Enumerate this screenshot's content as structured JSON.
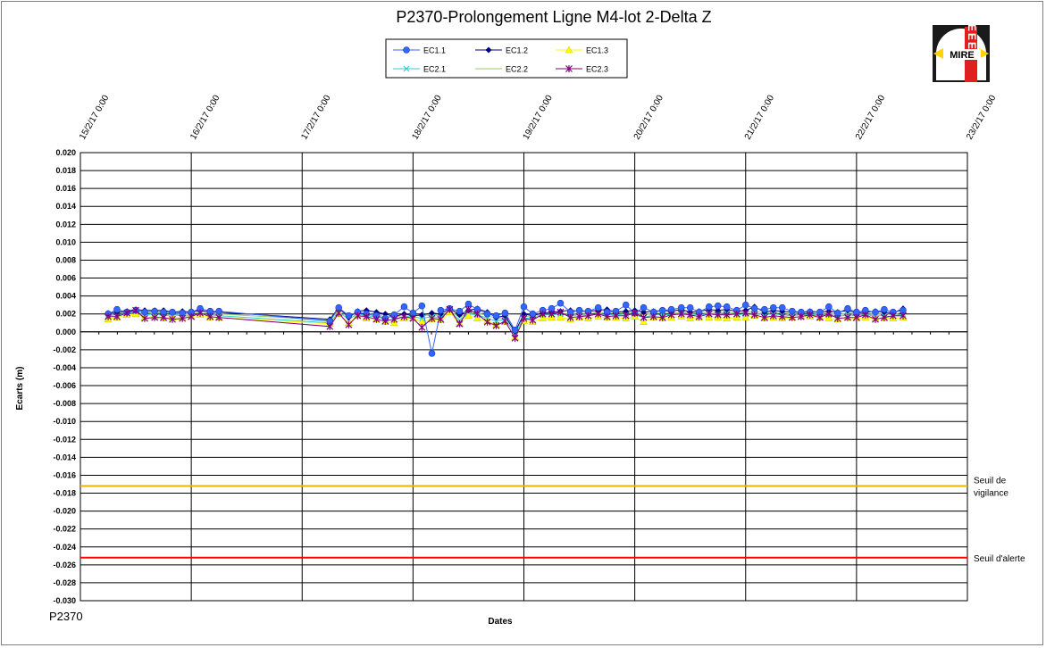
{
  "chart_data": {
    "type": "line",
    "title": "P2370-Prolongement  Ligne  M4-lot 2-Delta Z",
    "xlabel": "Dates",
    "ylabel": "Ecarts (m)",
    "footer_label": "P2370",
    "x_ticks": [
      "15/2/17 0:00",
      "16/2/17 0:00",
      "17/2/17 0:00",
      "18/2/17 0:00",
      "19/2/17 0:00",
      "20/2/17 0:00",
      "21/2/17 0:00",
      "22/2/17 0:00",
      "23/2/17 0:00"
    ],
    "xlim_days": [
      0,
      8
    ],
    "ylim": [
      -0.03,
      0.02
    ],
    "y_step": 0.002,
    "grid": true,
    "legend_position": "top-center",
    "thresholds": [
      {
        "label_lines": [
          "Seuil de",
          "vigilance"
        ],
        "value": -0.0172,
        "color": "#E8B400"
      },
      {
        "label_lines": [
          "Seuil d'alerte"
        ],
        "value": -0.0252,
        "color": "#FF0000"
      }
    ],
    "x": [
      0.25,
      0.33,
      0.42,
      0.5,
      0.58,
      0.67,
      0.75,
      0.83,
      0.92,
      1.0,
      1.08,
      1.17,
      1.25,
      2.25,
      2.33,
      2.42,
      2.5,
      2.58,
      2.67,
      2.75,
      2.83,
      2.92,
      3.0,
      3.08,
      3.17,
      3.25,
      3.33,
      3.42,
      3.5,
      3.58,
      3.67,
      3.75,
      3.83,
      3.92,
      4.0,
      4.08,
      4.17,
      4.25,
      4.33,
      4.42,
      4.5,
      4.58,
      4.67,
      4.75,
      4.83,
      4.92,
      5.0,
      5.08,
      5.17,
      5.25,
      5.33,
      5.42,
      5.5,
      5.58,
      5.67,
      5.75,
      5.83,
      5.92,
      6.0,
      6.08,
      6.17,
      6.25,
      6.33,
      6.42,
      6.5,
      6.58,
      6.67,
      6.75,
      6.83,
      6.92,
      7.0,
      7.08,
      7.17,
      7.25,
      7.33,
      7.42
    ],
    "series": [
      {
        "name": "EC1.1",
        "color": "#3366FF",
        "marker": "circle",
        "values": [
          0.002,
          0.0025,
          0.0022,
          0.0024,
          0.0022,
          0.0023,
          0.0022,
          0.0022,
          0.0021,
          0.0022,
          0.0026,
          0.0023,
          0.0023,
          0.0012,
          0.0027,
          0.0018,
          0.0022,
          0.002,
          0.0018,
          0.0015,
          0.0019,
          0.0028,
          0.0021,
          0.0029,
          -0.0024,
          0.0024,
          0.0026,
          0.0023,
          0.0031,
          0.0025,
          0.002,
          0.0018,
          0.0021,
          0.0002,
          0.0028,
          0.002,
          0.0024,
          0.0026,
          0.0032,
          0.0022,
          0.0024,
          0.0023,
          0.0027,
          0.0022,
          0.0023,
          0.003,
          0.0021,
          0.0027,
          0.0022,
          0.0024,
          0.0025,
          0.0027,
          0.0027,
          0.0022,
          0.0028,
          0.0029,
          0.0028,
          0.0024,
          0.003,
          0.0026,
          0.0025,
          0.0027,
          0.0027,
          0.0023,
          0.0022,
          0.0022,
          0.0022,
          0.0028,
          0.0021,
          0.0026,
          0.0022,
          0.0024,
          0.0022,
          0.0025,
          0.0022,
          0.0024
        ]
      },
      {
        "name": "EC1.2",
        "color": "#000080",
        "marker": "diamond",
        "values": [
          0.0021,
          0.0022,
          0.0023,
          0.0025,
          0.0024,
          0.0024,
          0.0024,
          0.0022,
          0.0023,
          0.0022,
          0.0024,
          0.0022,
          0.0022,
          0.0014,
          0.0027,
          0.0016,
          0.0023,
          0.0024,
          0.0022,
          0.002,
          0.0017,
          0.002,
          0.0018,
          0.0019,
          0.0021,
          0.002,
          0.0026,
          0.0019,
          0.0024,
          0.0026,
          0.0022,
          0.0016,
          0.0018,
          0.0,
          0.002,
          0.0018,
          0.0021,
          0.0022,
          0.0023,
          0.0024,
          0.0023,
          0.0023,
          0.0024,
          0.0025,
          0.0022,
          0.0023,
          0.0024,
          0.0022,
          0.0023,
          0.0024,
          0.0023,
          0.0025,
          0.0022,
          0.0023,
          0.0025,
          0.0024,
          0.0025,
          0.0023,
          0.0024,
          0.0028,
          0.0022,
          0.0024,
          0.0023,
          0.0022,
          0.0022,
          0.0023,
          0.0022,
          0.0023,
          0.0022,
          0.0024,
          0.0021,
          0.0022,
          0.0023,
          0.0022,
          0.0021,
          0.0026
        ]
      },
      {
        "name": "EC1.3",
        "color": "#FFFF00",
        "marker": "triangle",
        "values": [
          0.0014,
          0.0016,
          0.0019,
          0.002,
          0.0016,
          0.0017,
          0.0015,
          0.0016,
          0.0016,
          0.0017,
          0.0019,
          0.0016,
          0.0016,
          0.0009,
          0.002,
          0.001,
          0.0018,
          0.0015,
          0.0014,
          0.0011,
          0.001,
          0.0015,
          0.0015,
          0.0011,
          0.0014,
          0.0013,
          0.0022,
          0.0009,
          0.0018,
          0.0015,
          0.0012,
          0.0008,
          0.0011,
          -0.0006,
          0.0012,
          0.0011,
          0.0015,
          0.0016,
          0.0016,
          0.0014,
          0.0016,
          0.0015,
          0.0017,
          0.0016,
          0.0016,
          0.0015,
          0.0017,
          0.0011,
          0.0016,
          0.0015,
          0.0016,
          0.0017,
          0.0015,
          0.0016,
          0.0016,
          0.0016,
          0.0015,
          0.0016,
          0.0016,
          0.0018,
          0.0015,
          0.0016,
          0.0015,
          0.0016,
          0.0017,
          0.0017,
          0.0016,
          0.0015,
          0.0014,
          0.0016,
          0.0015,
          0.0016,
          0.0015,
          0.0015,
          0.0015,
          0.0016
        ]
      },
      {
        "name": "EC2.1",
        "color": "#33CCCC",
        "marker": "x",
        "values": [
          0.0018,
          0.0019,
          0.002,
          0.0022,
          0.0019,
          0.002,
          0.0018,
          0.0019,
          0.0018,
          0.0018,
          0.002,
          0.0019,
          0.0018,
          0.001,
          0.0022,
          0.0014,
          0.002,
          0.0018,
          0.0017,
          0.0014,
          0.0013,
          0.0017,
          0.0017,
          0.0015,
          0.0017,
          0.0016,
          0.0023,
          0.0013,
          0.002,
          0.0019,
          0.0015,
          0.0012,
          0.0014,
          -0.0002,
          0.0016,
          0.0014,
          0.0019,
          0.0019,
          0.002,
          0.0018,
          0.0019,
          0.0018,
          0.002,
          0.0019,
          0.0019,
          0.002,
          0.0019,
          0.0016,
          0.0019,
          0.0019,
          0.0019,
          0.0021,
          0.002,
          0.0019,
          0.002,
          0.002,
          0.0021,
          0.0019,
          0.002,
          0.0021,
          0.0019,
          0.002,
          0.0019,
          0.0018,
          0.0019,
          0.0019,
          0.0018,
          0.0019,
          0.0017,
          0.0019,
          0.0018,
          0.0019,
          0.0018,
          0.0018,
          0.0017,
          0.002
        ]
      },
      {
        "name": "EC2.2",
        "color": "#99CC66",
        "marker": "none",
        "values": [
          0.002,
          0.0021,
          0.0022,
          0.0023,
          0.0021,
          0.0022,
          0.0021,
          0.0021,
          0.002,
          0.002,
          0.0022,
          0.0021,
          0.002,
          0.0013,
          0.0024,
          0.0017,
          0.0022,
          0.002,
          0.0019,
          0.0017,
          0.0016,
          0.0019,
          0.0019,
          0.0018,
          0.0019,
          0.0018,
          0.0024,
          0.0016,
          0.0021,
          0.0021,
          0.0018,
          0.0015,
          0.0016,
          0.0001,
          0.0018,
          0.0016,
          0.002,
          0.0021,
          0.0021,
          0.002,
          0.0021,
          0.002,
          0.0022,
          0.0021,
          0.0021,
          0.0022,
          0.0021,
          0.0019,
          0.0021,
          0.0021,
          0.0021,
          0.0022,
          0.0021,
          0.0021,
          0.0022,
          0.0022,
          0.0022,
          0.0021,
          0.0022,
          0.0023,
          0.0021,
          0.0022,
          0.0021,
          0.002,
          0.0021,
          0.0021,
          0.002,
          0.0021,
          0.0019,
          0.0021,
          0.002,
          0.0021,
          0.002,
          0.002,
          0.0019,
          0.0022
        ]
      },
      {
        "name": "EC2.3",
        "color": "#800080",
        "marker": "star",
        "values": [
          0.0017,
          0.0017,
          0.0021,
          0.0024,
          0.0015,
          0.0016,
          0.0016,
          0.0014,
          0.0015,
          0.0017,
          0.0021,
          0.0017,
          0.0016,
          0.0006,
          0.0021,
          0.0008,
          0.0018,
          0.0017,
          0.0014,
          0.0012,
          0.0014,
          0.0017,
          0.0015,
          0.0005,
          0.0015,
          0.0014,
          0.0025,
          0.0009,
          0.0025,
          0.002,
          0.0011,
          0.0007,
          0.0012,
          -0.0007,
          0.0015,
          0.0013,
          0.002,
          0.002,
          0.0022,
          0.0016,
          0.0017,
          0.0018,
          0.002,
          0.0017,
          0.0018,
          0.0018,
          0.0021,
          0.0016,
          0.0017,
          0.0016,
          0.0019,
          0.002,
          0.0019,
          0.0017,
          0.002,
          0.0019,
          0.0019,
          0.002,
          0.0021,
          0.0019,
          0.0016,
          0.0018,
          0.0017,
          0.0016,
          0.0017,
          0.0019,
          0.0016,
          0.002,
          0.0015,
          0.0016,
          0.0016,
          0.0019,
          0.0014,
          0.0016,
          0.0018,
          0.0018
        ]
      }
    ]
  },
  "logo": {
    "text": "MIRE",
    "side_letters": "EEE"
  }
}
